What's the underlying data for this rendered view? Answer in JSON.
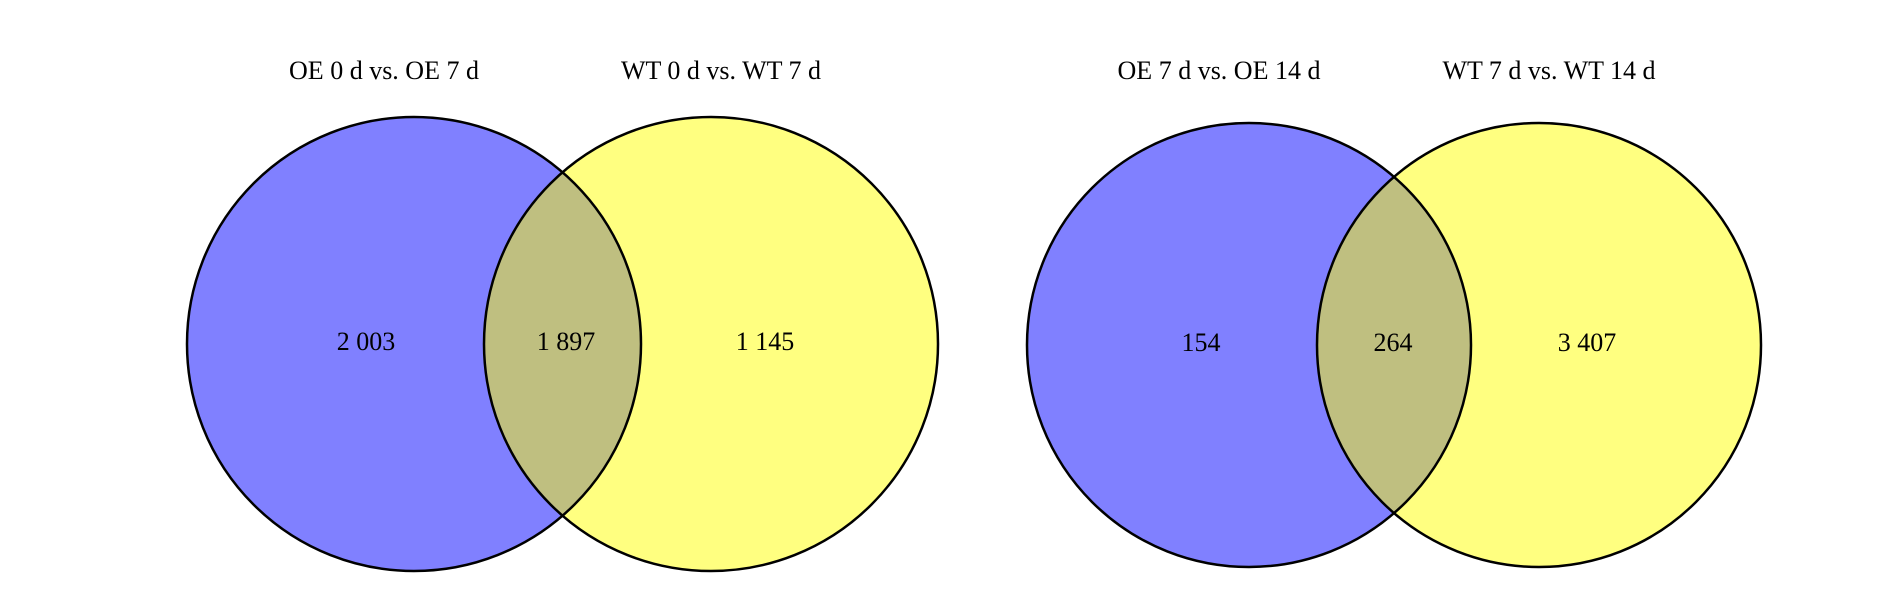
{
  "chart_data": [
    {
      "type": "venn",
      "sets": [
        {
          "name": "OE 0 d vs. OE 7 d",
          "color": "#8080ff"
        },
        {
          "name": "WT 0 d vs. WT 7 d",
          "color": "#ffff80"
        }
      ],
      "overlap_color": "#bfbf80",
      "values": [
        2003,
        1897,
        1145
      ],
      "value_labels": [
        "2 003",
        "1 897",
        "1 145"
      ]
    },
    {
      "type": "venn",
      "sets": [
        {
          "name": "OE 7 d vs. OE 14 d",
          "color": "#8080ff"
        },
        {
          "name": "WT 7 d vs. WT 14 d",
          "color": "#ffff80"
        }
      ],
      "overlap_color": "#bfbf80",
      "values": [
        154,
        264,
        3407
      ],
      "value_labels": [
        "154",
        "264",
        "3 407"
      ]
    }
  ]
}
